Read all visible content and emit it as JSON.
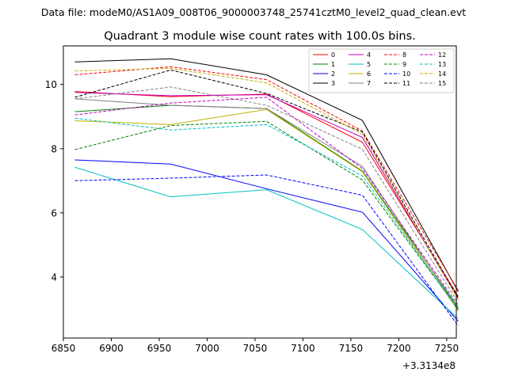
{
  "suptitle": "Data file: modeM0/AS1A09_008T06_9000003748_25741cztM0_level2_quad_clean.evt",
  "chart_data": {
    "type": "line",
    "title": "Quadrant 3 module wise count rates with 100.0s bins.",
    "xlabel": "",
    "ylabel": "",
    "x_offset_label": "+3.3134e8",
    "xlim": [
      6850,
      7260
    ],
    "ylim": [
      2.1,
      11.2
    ],
    "xticks": [
      6850,
      6900,
      6950,
      7000,
      7050,
      7100,
      7150,
      7200,
      7250
    ],
    "yticks": [
      4,
      6,
      8,
      10
    ],
    "x": [
      6862,
      6962,
      7062,
      7162,
      7262
    ],
    "legend_position": "top-right",
    "series": [
      {
        "name": "0",
        "color": "#ff0000",
        "dash": "solid",
        "values": [
          9.78,
          9.62,
          9.7,
          8.2,
          3.4
        ]
      },
      {
        "name": "1",
        "color": "#008000",
        "dash": "solid",
        "values": [
          9.15,
          9.35,
          9.25,
          7.3,
          3.05
        ]
      },
      {
        "name": "2",
        "color": "#0000ff",
        "dash": "solid",
        "values": [
          7.65,
          7.52,
          6.75,
          6.02,
          2.62
        ]
      },
      {
        "name": "3",
        "color": "#000000",
        "dash": "solid",
        "values": [
          10.7,
          10.8,
          10.3,
          8.88,
          3.55
        ]
      },
      {
        "name": "4",
        "color": "#c000c0",
        "dash": "solid",
        "values": [
          9.75,
          9.65,
          9.68,
          8.35,
          3.32
        ]
      },
      {
        "name": "5",
        "color": "#00c0c0",
        "dash": "solid",
        "values": [
          7.42,
          6.5,
          6.72,
          5.48,
          2.7
        ]
      },
      {
        "name": "6",
        "color": "#c0b000",
        "dash": "solid",
        "values": [
          8.87,
          8.75,
          9.22,
          7.28,
          2.95
        ]
      },
      {
        "name": "7",
        "color": "#808080",
        "dash": "solid",
        "values": [
          9.55,
          9.35,
          9.25,
          7.45,
          2.98
        ]
      },
      {
        "name": "8",
        "color": "#ff0000",
        "dash": "dashed",
        "values": [
          10.3,
          10.55,
          10.15,
          8.55,
          3.58
        ]
      },
      {
        "name": "9",
        "color": "#008000",
        "dash": "dashed",
        "values": [
          7.97,
          8.72,
          8.85,
          7.02,
          3.0
        ]
      },
      {
        "name": "10",
        "color": "#0000ff",
        "dash": "dashed",
        "values": [
          7.0,
          7.08,
          7.18,
          6.55,
          2.48
        ]
      },
      {
        "name": "11",
        "color": "#000000",
        "dash": "dashed",
        "values": [
          9.6,
          10.45,
          9.72,
          8.52,
          3.35
        ]
      },
      {
        "name": "12",
        "color": "#c000c0",
        "dash": "dashed",
        "values": [
          9.05,
          9.42,
          9.6,
          7.38,
          3.12
        ]
      },
      {
        "name": "13",
        "color": "#00c0c0",
        "dash": "dashed",
        "values": [
          8.95,
          8.58,
          8.75,
          7.15,
          2.98
        ]
      },
      {
        "name": "14",
        "color": "#c0b000",
        "dash": "dashed",
        "values": [
          10.42,
          10.5,
          10.05,
          8.45,
          3.3
        ]
      },
      {
        "name": "15",
        "color": "#808080",
        "dash": "dashed",
        "values": [
          9.55,
          9.92,
          9.35,
          7.98,
          3.2
        ]
      }
    ]
  }
}
